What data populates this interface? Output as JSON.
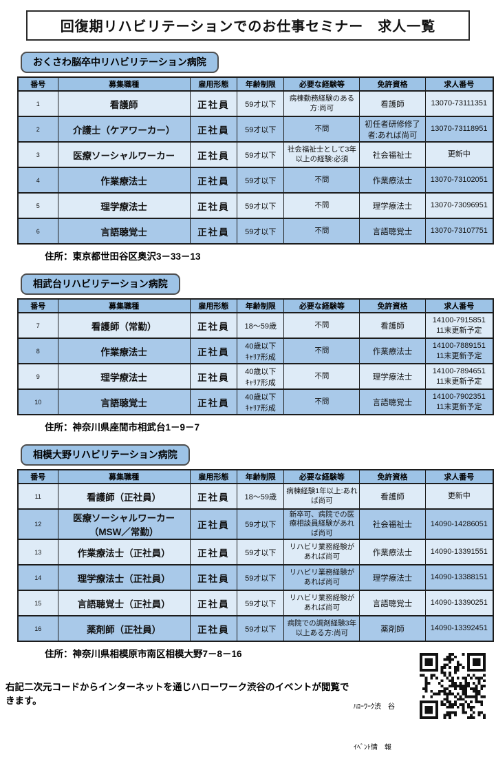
{
  "page_title": "回復期リハビリテーションでのお仕事セミナー　求人一覧",
  "table_headers": [
    "番号",
    "募集職種",
    "雇用形態",
    "年齢制限",
    "必要な経験等",
    "免許資格",
    "求人番号"
  ],
  "sections": [
    {
      "hospital": "おくさわ脳卒中リハビリテーション病院",
      "address": "住所：東京都世田谷区奥沢3－33－13",
      "rows": [
        {
          "no": "1",
          "job": "看護師",
          "employment": "正社員",
          "age": "59才以下",
          "experience": "病棟勤務経験のある方:尚可",
          "license": "看護師",
          "job_number": "13070-73111351"
        },
        {
          "no": "2",
          "job": "介護士（ケアワーカー）",
          "employment": "正社員",
          "age": "59才以下",
          "experience": "不問",
          "license": "初任者研修修了者:あれば尚可",
          "job_number": "13070-73118951"
        },
        {
          "no": "3",
          "job": "医療ソーシャルワーカー",
          "employment": "正社員",
          "age": "59才以下",
          "experience": "社会福祉士として3年以上の経験:必須",
          "license": "社会福祉士",
          "job_number": "更新中"
        },
        {
          "no": "4",
          "job": "作業療法士",
          "employment": "正社員",
          "age": "59才以下",
          "experience": "不問",
          "license": "作業療法士",
          "job_number": "13070-73102051"
        },
        {
          "no": "5",
          "job": "理学療法士",
          "employment": "正社員",
          "age": "59才以下",
          "experience": "不問",
          "license": "理学療法士",
          "job_number": "13070-73096951"
        },
        {
          "no": "6",
          "job": "言語聴覚士",
          "employment": "正社員",
          "age": "59才以下",
          "experience": "不問",
          "license": "言語聴覚士",
          "job_number": "13070-73107751"
        }
      ]
    },
    {
      "hospital": "相武台リハビリテーション病院",
      "address": "住所：神奈川県座間市相武台1－9－7",
      "rows": [
        {
          "no": "7",
          "job": "看護師（常勤）",
          "employment": "正社員",
          "age": "18～59歳",
          "experience": "不問",
          "license": "看護師",
          "job_number": "14100-7915851\n11末更新予定"
        },
        {
          "no": "8",
          "job": "作業療法士",
          "employment": "正社員",
          "age": "40歳以下\nｷｬﾘｱ形成",
          "experience": "不問",
          "license": "作業療法士",
          "job_number": "14100-7889151\n11末更新予定"
        },
        {
          "no": "9",
          "job": "理学療法士",
          "employment": "正社員",
          "age": "40歳以下\nｷｬﾘｱ形成",
          "experience": "不問",
          "license": "理学療法士",
          "job_number": "14100-7894651\n11末更新予定"
        },
        {
          "no": "10",
          "job": "言語聴覚士",
          "employment": "正社員",
          "age": "40歳以下\nｷｬﾘｱ形成",
          "experience": "不問",
          "license": "言語聴覚士",
          "job_number": "14100-7902351\n11末更新予定"
        }
      ]
    },
    {
      "hospital": "相模大野リハビリテーション病院",
      "address": "住所：神奈川県相模原市南区相模大野7－8－16",
      "rows": [
        {
          "no": "11",
          "job": "看護師（正社員）",
          "employment": "正社員",
          "age": "18～59歳",
          "experience": "病棟経験1年以上:あれば尚可",
          "license": "看護師",
          "job_number": "更新中"
        },
        {
          "no": "12",
          "job": "医療ソーシャルワーカー\n（MSW／常勤）",
          "employment": "正社員",
          "age": "59才以下",
          "experience": "新卒可、病院での医療相談員経験があれば尚可",
          "license": "社会福祉士",
          "job_number": "14090-14286051"
        },
        {
          "no": "13",
          "job": "作業療法士（正社員）",
          "employment": "正社員",
          "age": "59才以下",
          "experience": "リハビリ業務経験があれば尚可",
          "license": "作業療法士",
          "job_number": "14090-13391551"
        },
        {
          "no": "14",
          "job": "理学療法士（正社員）",
          "employment": "正社員",
          "age": "59才以下",
          "experience": "リハビリ業務経験があれば尚可",
          "license": "理学療法士",
          "job_number": "14090-13388151"
        },
        {
          "no": "15",
          "job": "言語聴覚士（正社員）",
          "employment": "正社員",
          "age": "59才以下",
          "experience": "リハビリ業務経験があれば尚可",
          "license": "言語聴覚士",
          "job_number": "14090-13390251"
        },
        {
          "no": "16",
          "job": "薬剤師（正社員）",
          "employment": "正社員",
          "age": "59才以下",
          "experience": "病院での調剤経験3年以上ある方:尚可",
          "license": "薬剤師",
          "job_number": "14090-13392451"
        }
      ]
    }
  ],
  "footer": {
    "notice": "右記二次元コードからインターネットを通じハローワーク渋谷のイベントが閲覧できます。",
    "qr_caption_line1": "ﾊﾛｰﾜｰｸ渋　谷",
    "qr_caption_line2": "ｲﾍﾞﾝﾄ情　報"
  },
  "colors": {
    "header_blue": "#9DC3E6",
    "row_light": "#DEEBF7",
    "row_dark": "#A9C9E9",
    "border_dark": "#1c1c1c"
  }
}
